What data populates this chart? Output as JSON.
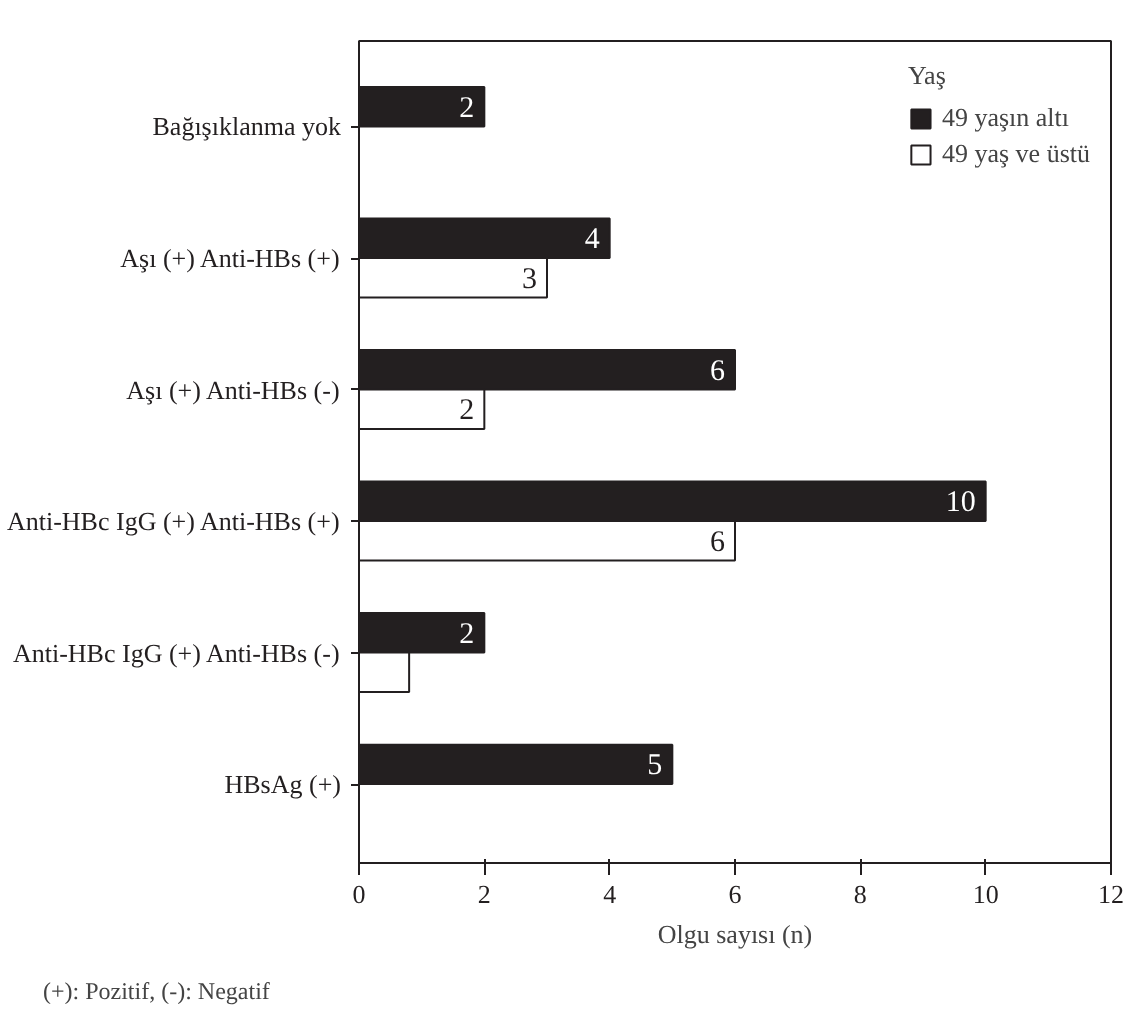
{
  "chart_data": {
    "type": "bar",
    "orientation": "horizontal",
    "categories": [
      "Bağışıklanma yok",
      "Aşı (+) Anti-HBs (+)",
      "Aşı (+) Anti-HBs (-)",
      "Anti-HBc IgG (+) Anti-HBs (+)",
      "Anti-HBc IgG (+) Anti-HBs (-)",
      "HBsAg (+)"
    ],
    "series": [
      {
        "name": "49 yaşın altı",
        "color": "#231f20",
        "values": [
          2,
          4,
          6,
          10,
          2,
          5
        ],
        "value_labels": [
          "2",
          "4",
          "6",
          "10",
          "2",
          "5"
        ]
      },
      {
        "name": "49 yaş ve üstü",
        "color": "#ffffff",
        "values": [
          null,
          3,
          2,
          6,
          0.8,
          null
        ],
        "value_labels": [
          null,
          "3",
          "2",
          "6",
          null,
          null
        ]
      }
    ],
    "xlabel": "Olgu sayısı (n)",
    "legend_title": "Yaş",
    "legend": "top right",
    "xlim": [
      0,
      12
    ],
    "xticks": [
      0,
      2,
      4,
      6,
      8,
      10,
      12
    ],
    "grid": false,
    "annotations": [
      "(+): Pozitif, (-): Negatif"
    ]
  }
}
